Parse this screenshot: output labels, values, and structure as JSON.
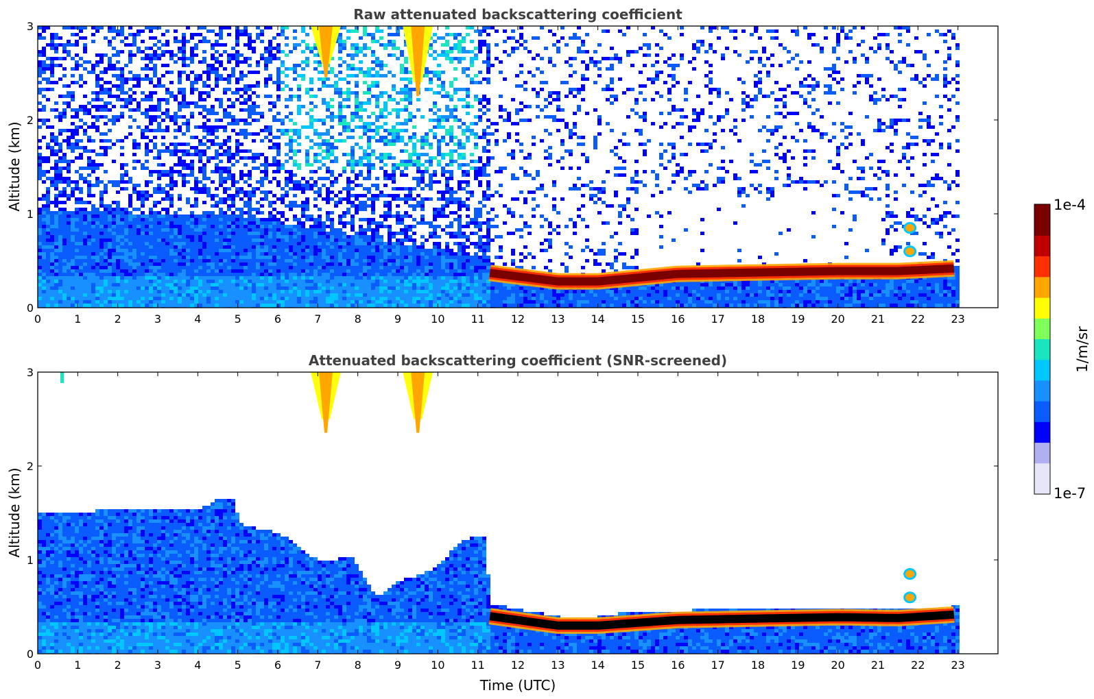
{
  "chart_data": [
    {
      "type": "heatmap",
      "title": "Raw attenuated backscattering coefficient",
      "xlabel": "",
      "ylabel": "Altitude (km)",
      "xlim": [
        0,
        24
      ],
      "ylim": [
        0,
        3
      ],
      "xticks": [
        "0",
        "1",
        "2",
        "3",
        "4",
        "5",
        "6",
        "7",
        "8",
        "9",
        "10",
        "11",
        "12",
        "13",
        "14",
        "15",
        "16",
        "17",
        "18",
        "19",
        "20",
        "21",
        "22",
        "23"
      ],
      "yticks": [
        "0",
        "1",
        "2",
        "3"
      ],
      "data_end_hour": 23,
      "layer_top_km": [
        {
          "t": 0,
          "z": 1.05
        },
        {
          "t": 5,
          "z": 1.0
        },
        {
          "t": 11.2,
          "z": 0.55
        },
        {
          "t": 11.4,
          "z": 0.45
        },
        {
          "t": 13.5,
          "z": 0.33
        },
        {
          "t": 16,
          "z": 0.43
        },
        {
          "t": 20,
          "z": 0.45
        },
        {
          "t": 23,
          "z": 0.48
        }
      ],
      "features": [
        {
          "kind": "strong-layer",
          "t_start": 11.3,
          "t_end": 23,
          "z_km": [
            [
              11.3,
              0.37
            ],
            [
              13,
              0.28
            ],
            [
              14,
              0.28
            ],
            [
              16,
              0.36
            ],
            [
              20,
              0.39
            ],
            [
              21.5,
              0.39
            ],
            [
              23,
              0.42
            ]
          ]
        },
        {
          "kind": "high-plume",
          "t_center": 7.2,
          "z_bottom_km": 2.6
        },
        {
          "kind": "high-plume",
          "t_center": 9.5,
          "z_bottom_km": 2.4
        },
        {
          "kind": "cloud-blob",
          "t": 21.8,
          "z_km": 0.85
        },
        {
          "kind": "cloud-blob",
          "t": 21.8,
          "z_km": 0.6
        }
      ]
    },
    {
      "type": "heatmap",
      "title": "Attenuated backscattering coefficient (SNR-screened)",
      "xlabel": "Time (UTC)",
      "ylabel": "Altitude (km)",
      "xlim": [
        0,
        24
      ],
      "ylim": [
        0,
        3
      ],
      "xticks": [
        "0",
        "1",
        "2",
        "3",
        "4",
        "5",
        "6",
        "7",
        "8",
        "9",
        "10",
        "11",
        "12",
        "13",
        "14",
        "15",
        "16",
        "17",
        "18",
        "19",
        "20",
        "21",
        "22",
        "23"
      ],
      "yticks": [
        "0",
        "1",
        "2",
        "3"
      ],
      "data_end_hour": 23,
      "screened_top_km": [
        {
          "t": 0,
          "z": 1.52
        },
        {
          "t": 2,
          "z": 1.55
        },
        {
          "t": 4,
          "z": 1.55
        },
        {
          "t": 4.5,
          "z": 1.68
        },
        {
          "t": 4.85,
          "z": 1.65
        },
        {
          "t": 5.0,
          "z": 1.4
        },
        {
          "t": 6,
          "z": 1.3
        },
        {
          "t": 7,
          "z": 1.0
        },
        {
          "t": 7.8,
          "z": 1.05
        },
        {
          "t": 8.4,
          "z": 0.62
        },
        {
          "t": 9,
          "z": 0.8
        },
        {
          "t": 9.8,
          "z": 0.9
        },
        {
          "t": 10.5,
          "z": 1.2
        },
        {
          "t": 11.1,
          "z": 1.3
        },
        {
          "t": 11.3,
          "z": 0.55
        },
        {
          "t": 13.5,
          "z": 0.37
        },
        {
          "t": 14.5,
          "z": 0.45
        },
        {
          "t": 16,
          "z": 0.48
        },
        {
          "t": 20,
          "z": 0.5
        },
        {
          "t": 23,
          "z": 0.52
        }
      ],
      "features": [
        {
          "kind": "saturated-layer",
          "t_start": 11.3,
          "t_end": 23,
          "z_km": [
            [
              11.3,
              0.4
            ],
            [
              13,
              0.3
            ],
            [
              14,
              0.3
            ],
            [
              16,
              0.36
            ],
            [
              20,
              0.39
            ],
            [
              21.5,
              0.38
            ],
            [
              23,
              0.42
            ]
          ]
        },
        {
          "kind": "high-plume",
          "t_center": 7.2,
          "z_bottom_km": 2.5
        },
        {
          "kind": "high-plume",
          "t_center": 9.5,
          "z_bottom_km": 2.5
        },
        {
          "kind": "small-patch",
          "t": 0.6,
          "z_km": 2.9
        },
        {
          "kind": "cloud-blob",
          "t": 21.8,
          "z_km": 0.85
        },
        {
          "kind": "cloud-blob",
          "t": 21.8,
          "z_km": 0.6
        }
      ]
    }
  ],
  "colorbar": {
    "label": "1/m/sr",
    "max_label": "1e-4",
    "min_label": "1e-7",
    "scale": "log",
    "colormap": [
      "#e6e6f7",
      "#b0b0f0",
      "#0000ff",
      "#0a5cff",
      "#1890ff",
      "#00c8ff",
      "#19e6c0",
      "#7fff5a",
      "#ffff00",
      "#ffa600",
      "#ff3000",
      "#c00000",
      "#7a0000"
    ]
  }
}
